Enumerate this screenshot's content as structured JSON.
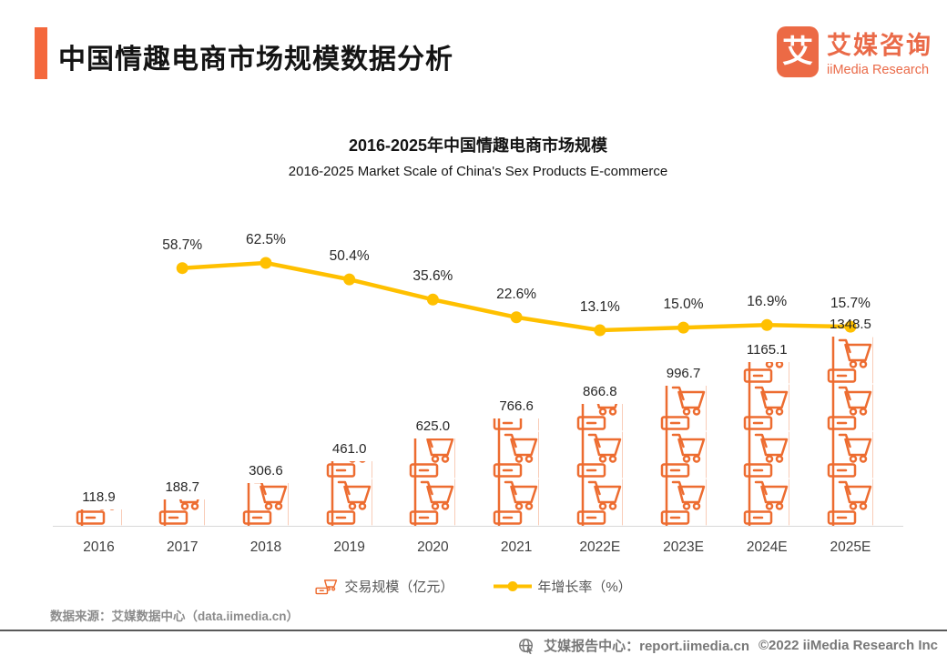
{
  "header": {
    "title": "中国情趣电商市场规模数据分析",
    "logo": {
      "glyph": "艾",
      "name_cn": "艾媒咨询",
      "name_en": "iiMedia Research"
    }
  },
  "chart_data": {
    "type": "combo",
    "title": "2016-2025年中国情趣电商市场规模",
    "subtitle": "2016-2025 Market Scale of China's Sex Products E-commerce",
    "categories": [
      "2016",
      "2017",
      "2018",
      "2019",
      "2020",
      "2021",
      "2022E",
      "2023E",
      "2024E",
      "2025E"
    ],
    "series": [
      {
        "name": "交易规模（亿元）",
        "type": "pictogram-bar",
        "values": [
          118.9,
          188.7,
          306.6,
          461.0,
          625.0,
          766.6,
          866.8,
          996.7,
          1165.1,
          1348.5
        ]
      },
      {
        "name": "年增长率（%）",
        "type": "line",
        "values": [
          null,
          58.7,
          62.5,
          50.4,
          35.6,
          22.6,
          13.1,
          15.0,
          16.9,
          15.7
        ]
      }
    ],
    "ylim_bars": [
      0,
      1400
    ],
    "ylim_line": [
      0,
      70
    ],
    "grid": false,
    "legend_position": "bottom",
    "colors": {
      "bar": "#ED6C30",
      "line": "#FFC000",
      "axis": "#D9D9D9"
    }
  },
  "legend": {
    "bars_label": "交易规模（亿元）",
    "line_label": "年增长率（%）"
  },
  "footer": {
    "source": "数据来源：艾媒数据中心（data.iimedia.cn）",
    "report_center": "艾媒报告中心：report.iimedia.cn",
    "copyright": "©2022  iiMedia Research Inc"
  }
}
